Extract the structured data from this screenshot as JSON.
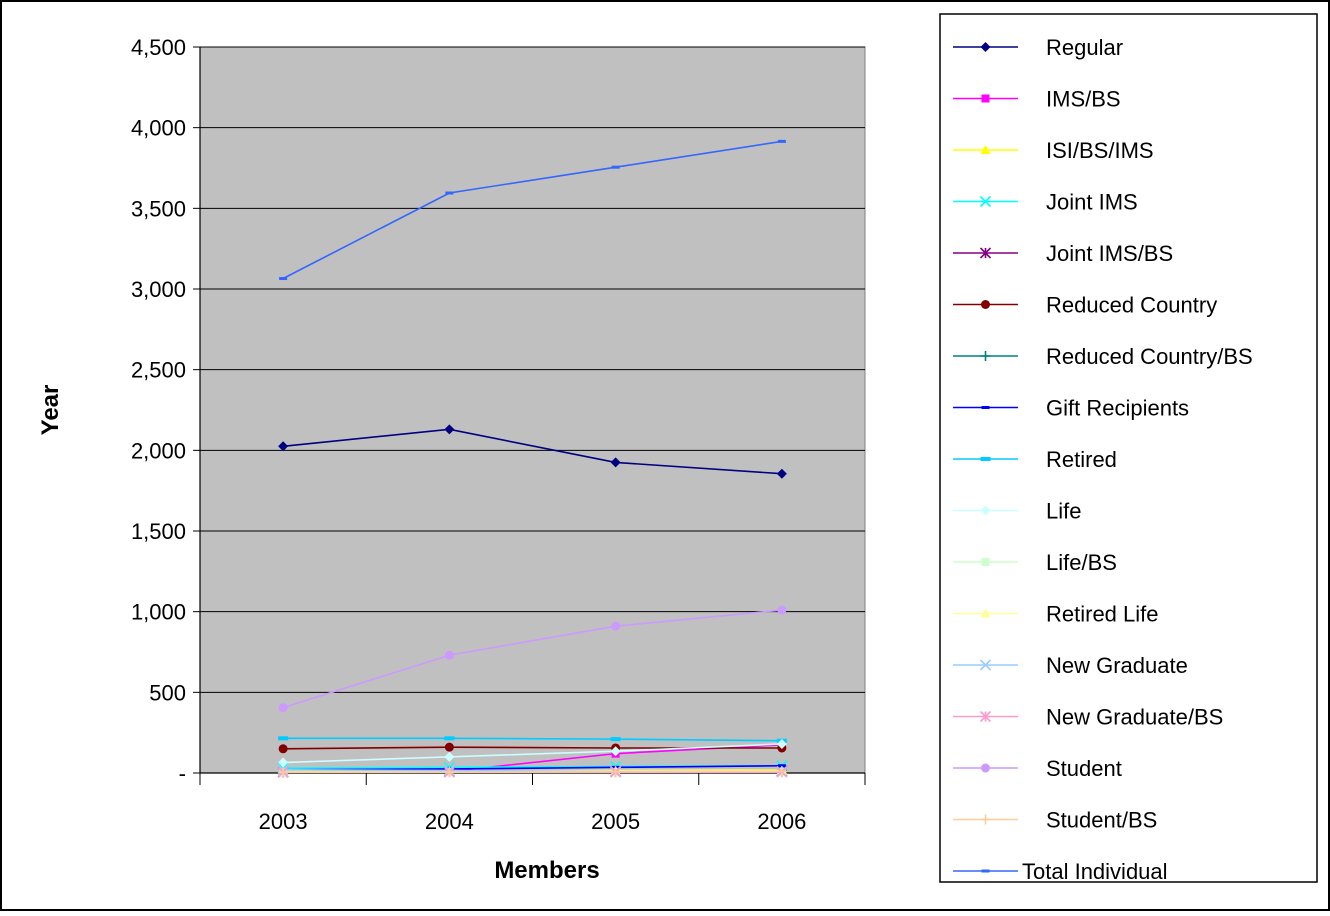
{
  "chart_data": {
    "type": "line",
    "title": "",
    "xlabel": "Members",
    "ylabel": "Year",
    "categories": [
      "2003",
      "2004",
      "2005",
      "2006"
    ],
    "ylim": [
      0,
      4500
    ],
    "yticks": [
      0,
      500,
      1000,
      1500,
      2000,
      2500,
      3000,
      3500,
      4000,
      4500
    ],
    "ytick_labels": [
      "-",
      "500",
      "1,000",
      "1,500",
      "2,000",
      "2,500",
      "3,000",
      "3,500",
      "4,000",
      "4,500"
    ],
    "grid": "horizontal",
    "plot_background": "#c0c0c0",
    "legend_position": "right",
    "series": [
      {
        "name": "Regular",
        "color": "#000080",
        "marker": "diamond",
        "values": [
          2025,
          2130,
          1925,
          1855
        ]
      },
      {
        "name": "IMS/BS",
        "color": "#ff00ff",
        "marker": "square",
        "values": [
          5,
          10,
          120,
          175
        ]
      },
      {
        "name": "ISI/BS/IMS",
        "color": "#ffff00",
        "marker": "triangle",
        "values": [
          10,
          12,
          15,
          20
        ]
      },
      {
        "name": "Joint IMS",
        "color": "#00ffff",
        "marker": "x",
        "values": [
          30,
          35,
          40,
          45
        ]
      },
      {
        "name": "Joint IMS/BS",
        "color": "#800080",
        "marker": "star",
        "values": [
          5,
          8,
          10,
          12
        ]
      },
      {
        "name": "Reduced Country",
        "color": "#800000",
        "marker": "circle",
        "values": [
          150,
          160,
          155,
          155
        ]
      },
      {
        "name": "Reduced Country/BS",
        "color": "#008080",
        "marker": "plus",
        "values": [
          5,
          8,
          10,
          15
        ]
      },
      {
        "name": "Gift Recipients",
        "color": "#0000ff",
        "marker": "dash",
        "values": [
          20,
          25,
          35,
          45
        ]
      },
      {
        "name": "Retired",
        "color": "#00ccff",
        "marker": "bar",
        "values": [
          215,
          215,
          210,
          200
        ]
      },
      {
        "name": "Life",
        "color": "#ccffff",
        "marker": "diamond",
        "values": [
          65,
          100,
          135,
          180
        ]
      },
      {
        "name": "Life/BS",
        "color": "#ccffcc",
        "marker": "square",
        "values": [
          5,
          5,
          5,
          5
        ]
      },
      {
        "name": "Retired Life",
        "color": "#ffff99",
        "marker": "triangle",
        "values": [
          10,
          10,
          15,
          15
        ]
      },
      {
        "name": "New Graduate",
        "color": "#99ccff",
        "marker": "x",
        "values": [
          20,
          15,
          10,
          10
        ]
      },
      {
        "name": "New Graduate/BS",
        "color": "#ff99cc",
        "marker": "star",
        "values": [
          5,
          5,
          5,
          5
        ]
      },
      {
        "name": "Student",
        "color": "#cc99ff",
        "marker": "circle",
        "values": [
          405,
          730,
          910,
          1010
        ]
      },
      {
        "name": "Student/BS",
        "color": "#ffcc99",
        "marker": "plus",
        "values": [
          5,
          5,
          8,
          10
        ]
      },
      {
        "name": "Total Individual",
        "color": "#3366ff",
        "marker": "dash",
        "values": [
          3065,
          3595,
          3755,
          3915
        ]
      }
    ]
  }
}
